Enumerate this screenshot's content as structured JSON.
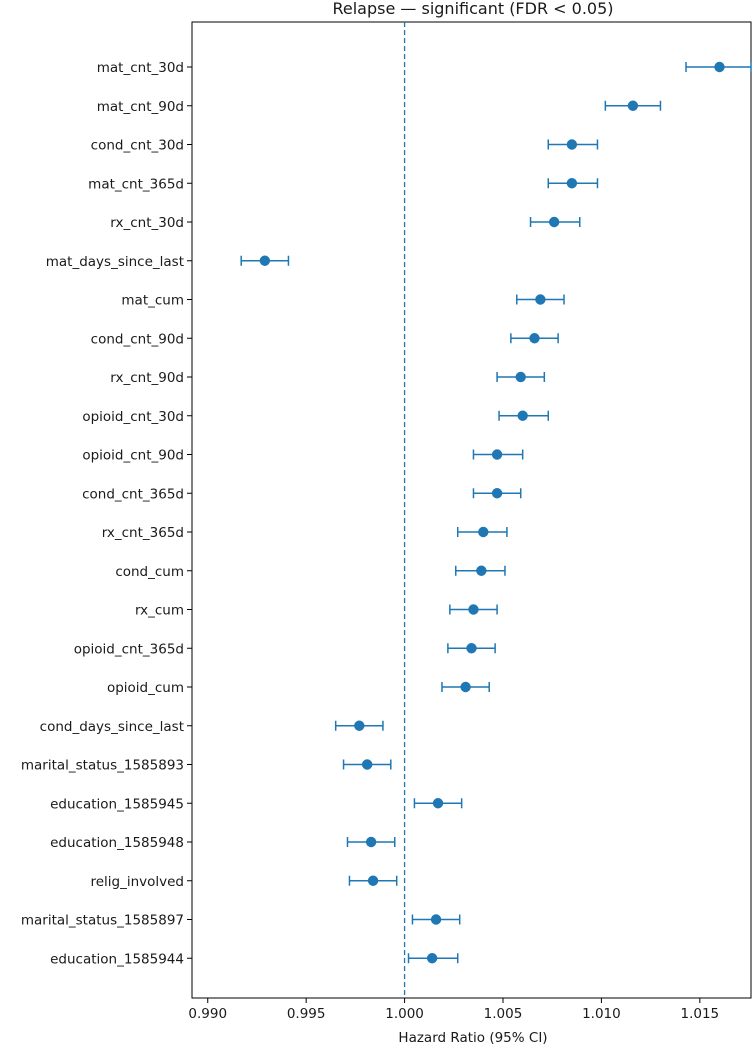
{
  "chart_data": {
    "type": "scatter",
    "title": "Relapse — significant (FDR < 0.05)",
    "xlabel": "Hazard Ratio (95% CI)",
    "ylabel": "",
    "xlim": [
      0.9892,
      1.0176
    ],
    "xticks": [
      0.99,
      0.995,
      1.0,
      1.005,
      1.01,
      1.015
    ],
    "xtick_labels": [
      "0.990",
      "0.995",
      "1.000",
      "1.005",
      "1.010",
      "1.015"
    ],
    "reference_line": 1.0,
    "grid": false,
    "color": "#1f77b4",
    "points": [
      {
        "label": "mat_cnt_30d",
        "hr": 1.016,
        "lo": 1.0143,
        "hi": 1.0176
      },
      {
        "label": "mat_cnt_90d",
        "hr": 1.0116,
        "lo": 1.0102,
        "hi": 1.013
      },
      {
        "label": "cond_cnt_30d",
        "hr": 1.0085,
        "lo": 1.0073,
        "hi": 1.0098
      },
      {
        "label": "mat_cnt_365d",
        "hr": 1.0085,
        "lo": 1.0073,
        "hi": 1.0098
      },
      {
        "label": "rx_cnt_30d",
        "hr": 1.0076,
        "lo": 1.0064,
        "hi": 1.0089
      },
      {
        "label": "mat_days_since_last",
        "hr": 0.9929,
        "lo": 0.9917,
        "hi": 0.9941
      },
      {
        "label": "mat_cum",
        "hr": 1.0069,
        "lo": 1.0057,
        "hi": 1.0081
      },
      {
        "label": "cond_cnt_90d",
        "hr": 1.0066,
        "lo": 1.0054,
        "hi": 1.0078
      },
      {
        "label": "rx_cnt_90d",
        "hr": 1.0059,
        "lo": 1.0047,
        "hi": 1.0071
      },
      {
        "label": "opioid_cnt_30d",
        "hr": 1.006,
        "lo": 1.0048,
        "hi": 1.0073
      },
      {
        "label": "opioid_cnt_90d",
        "hr": 1.0047,
        "lo": 1.0035,
        "hi": 1.006
      },
      {
        "label": "cond_cnt_365d",
        "hr": 1.0047,
        "lo": 1.0035,
        "hi": 1.0059
      },
      {
        "label": "rx_cnt_365d",
        "hr": 1.004,
        "lo": 1.0027,
        "hi": 1.0052
      },
      {
        "label": "cond_cum",
        "hr": 1.0039,
        "lo": 1.0026,
        "hi": 1.0051
      },
      {
        "label": "rx_cum",
        "hr": 1.0035,
        "lo": 1.0023,
        "hi": 1.0047
      },
      {
        "label": "opioid_cnt_365d",
        "hr": 1.0034,
        "lo": 1.0022,
        "hi": 1.0046
      },
      {
        "label": "opioid_cum",
        "hr": 1.0031,
        "lo": 1.0019,
        "hi": 1.0043
      },
      {
        "label": "cond_days_since_last",
        "hr": 0.9977,
        "lo": 0.9965,
        "hi": 0.9989
      },
      {
        "label": "marital_status_1585893",
        "hr": 0.9981,
        "lo": 0.9969,
        "hi": 0.9993
      },
      {
        "label": "education_1585945",
        "hr": 1.0017,
        "lo": 1.0005,
        "hi": 1.0029
      },
      {
        "label": "education_1585948",
        "hr": 0.9983,
        "lo": 0.9971,
        "hi": 0.9995
      },
      {
        "label": "relig_involved",
        "hr": 0.9984,
        "lo": 0.9972,
        "hi": 0.9996
      },
      {
        "label": "marital_status_1585897",
        "hr": 1.0016,
        "lo": 1.0004,
        "hi": 1.0028
      },
      {
        "label": "education_1585944",
        "hr": 1.0014,
        "lo": 1.0002,
        "hi": 1.0027
      }
    ]
  }
}
